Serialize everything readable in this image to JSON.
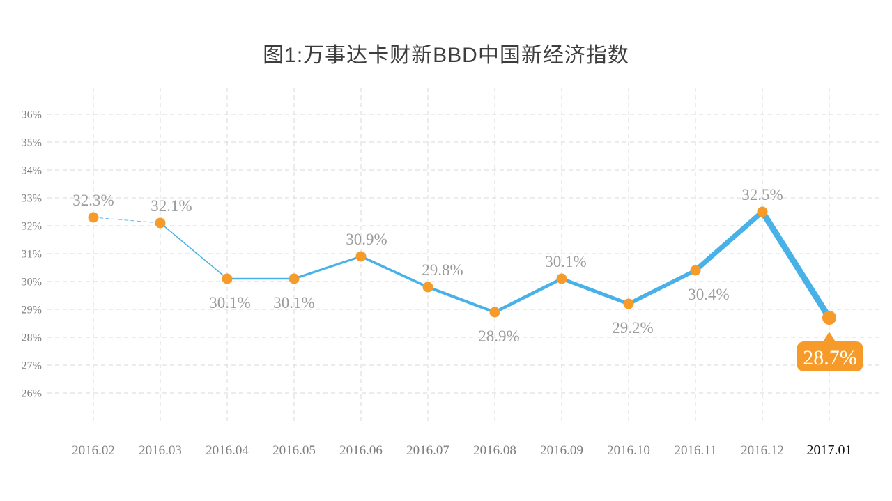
{
  "title": "图1:万事达卡财新BBD中国新经济指数",
  "chart_data": {
    "type": "line",
    "title": "图1:万事达卡财新BBD中国新经济指数",
    "x": [
      "2016.02",
      "2016.03",
      "2016.04",
      "2016.05",
      "2016.06",
      "2016.07",
      "2016.08",
      "2016.09",
      "2016.10",
      "2016.11",
      "2016.12",
      "2017.01"
    ],
    "series": [
      {
        "name": "中国新经济指数",
        "values": [
          32.3,
          32.1,
          30.1,
          30.1,
          30.9,
          29.8,
          28.9,
          30.1,
          29.2,
          30.4,
          32.5,
          28.7
        ],
        "point_labels": [
          "32.3%",
          "32.1%",
          "30.1%",
          "30.1%",
          "30.9%",
          "29.8%",
          "28.9%",
          "30.1%",
          "29.2%",
          "30.4%",
          "32.5%",
          "28.7%"
        ],
        "label_positions": [
          "above",
          "above",
          "below",
          "below",
          "above",
          "above",
          "below",
          "above",
          "below",
          "below",
          "above",
          "callout"
        ]
      }
    ],
    "y_ticks": [
      "36%",
      "35%",
      "34%",
      "33%",
      "32%",
      "31%",
      "30%",
      "29%",
      "28%",
      "27%",
      "26%"
    ],
    "y_tick_values": [
      36,
      35,
      34,
      33,
      32,
      31,
      30,
      29,
      28,
      27,
      26
    ],
    "ylim": [
      26,
      36
    ],
    "xlabel": "",
    "ylabel": "",
    "grid": true,
    "legend": "none",
    "style": {
      "line_color": "#47B1E8",
      "point_color": "#F69A29",
      "grid_color": "#d8d8d8",
      "data_label_color": "#9b9b9b",
      "axis_label_color": "#7f7f7f",
      "last_x_label_color": "#141414",
      "title_color": "#3d3d3d",
      "line_style": "progressively-thicker, first segment dashed"
    },
    "callout": {
      "text": "28.7%",
      "bg_color": "#F69A29",
      "text_color": "#ffffff",
      "attached_to": "2017.01"
    },
    "highlight_last_x_label": true
  }
}
